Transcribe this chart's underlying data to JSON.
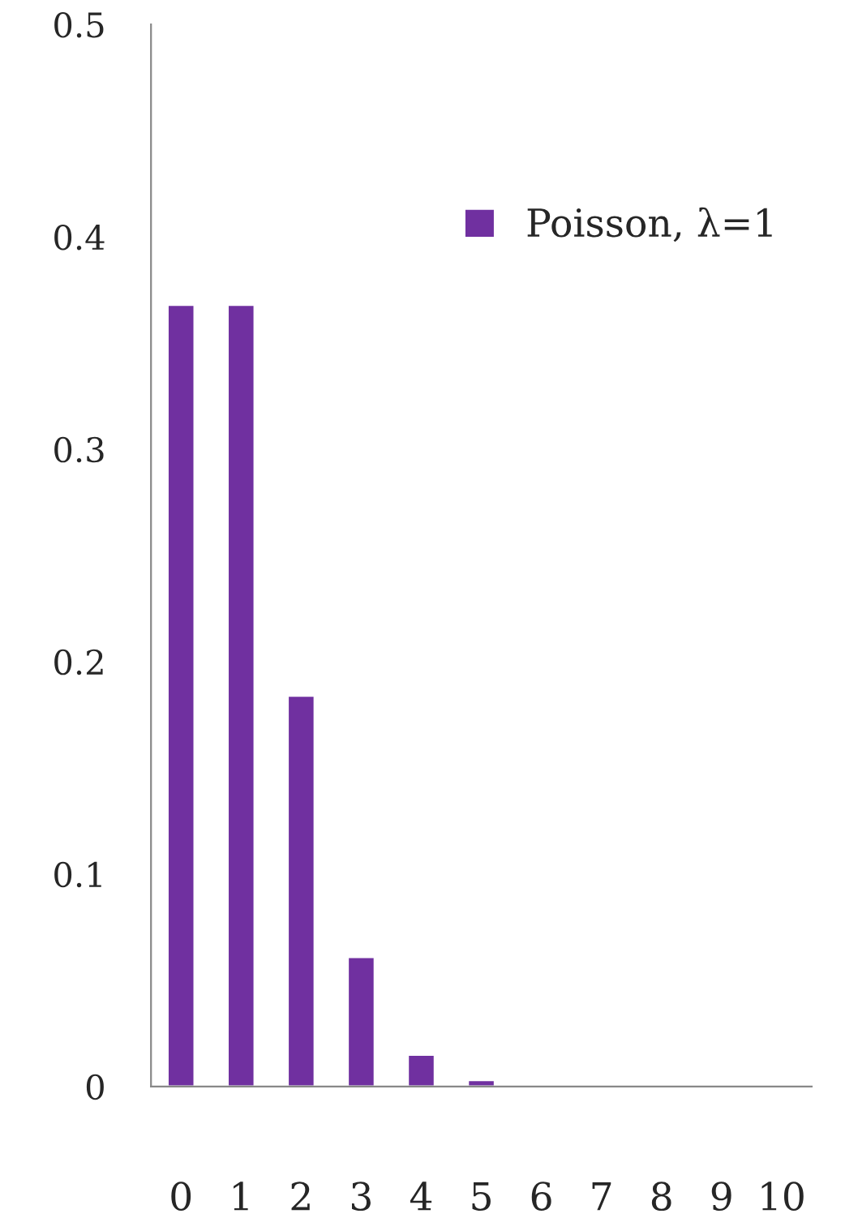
{
  "chart_data": {
    "type": "bar",
    "categories": [
      "0",
      "1",
      "2",
      "3",
      "4",
      "5",
      "6",
      "7",
      "8",
      "9",
      "10"
    ],
    "series": [
      {
        "name": "Poisson, λ=1",
        "color": "#7030a0",
        "values": [
          0.368,
          0.368,
          0.184,
          0.061,
          0.015,
          0.003,
          0.0005,
          0.0001,
          null,
          null,
          null
        ]
      }
    ],
    "ylim": [
      0,
      0.5
    ],
    "yticks": [
      0,
      0.1,
      0.2,
      0.3,
      0.4,
      0.5
    ],
    "legend": "top right",
    "grid": false
  }
}
